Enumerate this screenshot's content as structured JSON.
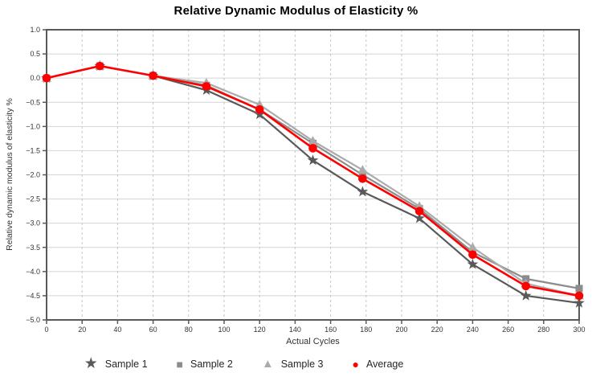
{
  "chart_data": {
    "type": "line",
    "title": "Relative Dynamic Modulus of Elasticity %",
    "xlabel": "Actual Cycles",
    "ylabel": "Relative dynamic modulus of elasticity %",
    "xlim": [
      0,
      300
    ],
    "ylim": [
      -5.0,
      1.0
    ],
    "grid": true,
    "legend_position": "bottom",
    "x_tick_values": [
      0,
      20,
      40,
      60,
      80,
      100,
      120,
      140,
      160,
      180,
      200,
      220,
      240,
      260,
      280,
      300
    ],
    "x_tick_labels": [
      "0",
      "20",
      "40",
      "60",
      "80",
      "100",
      "120",
      "140",
      "160",
      "180",
      "200",
      "220",
      "240",
      "260",
      "280",
      "300"
    ],
    "y_tick_values": [
      1.0,
      0.5,
      0.0,
      -0.5,
      -1.0,
      -1.5,
      -2.0,
      -2.5,
      -3.0,
      -3.5,
      -4.0,
      -4.5,
      -5.0
    ],
    "y_tick_labels": [
      "1.0",
      "0.5",
      "0.0",
      "−0.5",
      "−1.0",
      "−1.5",
      "−2.0",
      "−2.5",
      "−3.0",
      "−3.5",
      "−4.0",
      "−4.5",
      "−5.0"
    ],
    "x": [
      0,
      30,
      60,
      90,
      120,
      150,
      178,
      210,
      240,
      270,
      300
    ],
    "series": [
      {
        "name": "Sample 1",
        "marker": "star",
        "color": "#595959",
        "values": [
          0.0,
          0.25,
          0.05,
          -0.25,
          -0.75,
          -1.7,
          -2.35,
          -2.9,
          -3.85,
          -4.5,
          -4.65
        ]
      },
      {
        "name": "Sample 2",
        "marker": "square",
        "color": "#8c8c8c",
        "values": [
          0.0,
          0.25,
          0.05,
          -0.15,
          -0.65,
          -1.35,
          -2.0,
          -2.7,
          -3.6,
          -4.15,
          -4.35
        ]
      },
      {
        "name": "Sample 3",
        "marker": "triangle",
        "color": "#ababab",
        "values": [
          0.0,
          0.25,
          0.05,
          -0.1,
          -0.55,
          -1.3,
          -1.9,
          -2.65,
          -3.5,
          -4.25,
          -4.5
        ]
      },
      {
        "name": "Average",
        "marker": "circle",
        "color": "#ff0000",
        "values": [
          0.0,
          0.25,
          0.05,
          -0.17,
          -0.65,
          -1.45,
          -2.08,
          -2.75,
          -3.65,
          -4.3,
          -4.5
        ]
      }
    ],
    "colors": {
      "frame": "#595959",
      "h_gridline": "#d4d4d4",
      "v_gridline": "#c6c6c6",
      "tick_label": "#333333"
    }
  }
}
